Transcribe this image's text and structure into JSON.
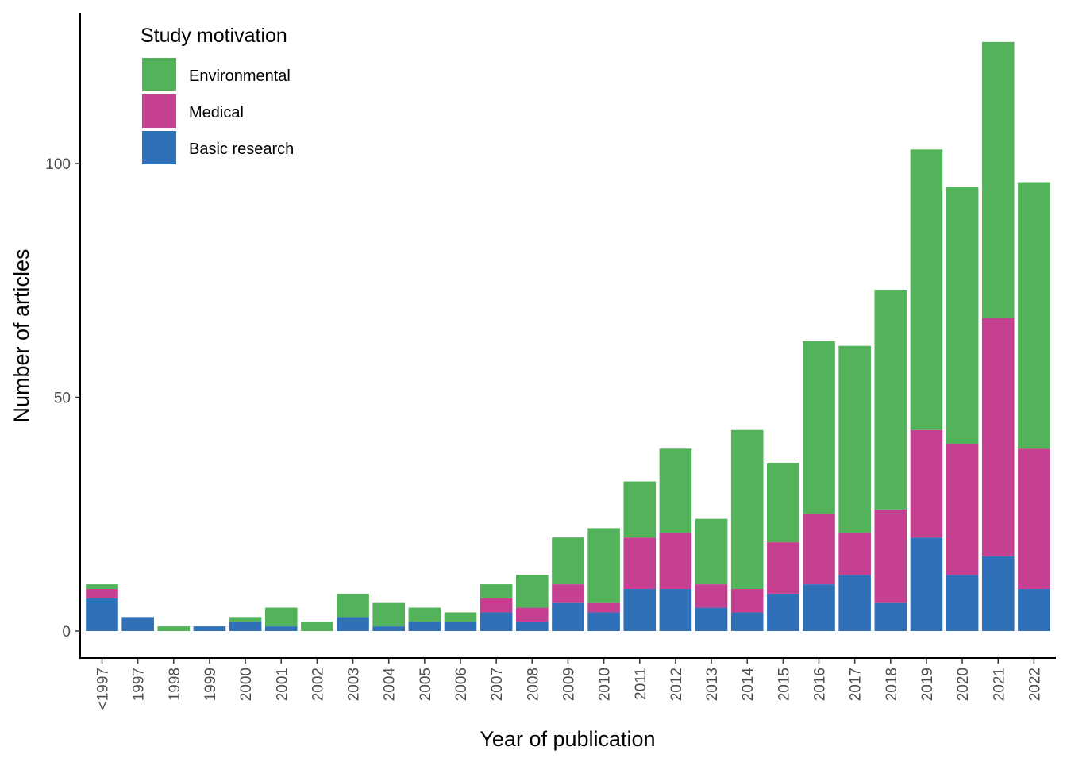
{
  "chart_data": {
    "type": "bar",
    "stacked": true,
    "xlabel": "Year of publication",
    "ylabel": "Number of articles",
    "ylim": [
      -6,
      127
    ],
    "yticks": [
      0,
      50,
      100
    ],
    "grid": false,
    "legend": {
      "title": "Study motivation",
      "placement": "top-left"
    },
    "categories": [
      "<1997",
      "1997",
      "1998",
      "1999",
      "2000",
      "2001",
      "2002",
      "2003",
      "2004",
      "2005",
      "2006",
      "2007",
      "2008",
      "2009",
      "2010",
      "2011",
      "2012",
      "2013",
      "2014",
      "2015",
      "2016",
      "2017",
      "2018",
      "2019",
      "2020",
      "2021",
      "2022"
    ],
    "series": [
      {
        "name": "Basic research",
        "color": "#3070b8",
        "values": [
          7,
          3,
          0,
          1,
          2,
          1,
          0,
          3,
          1,
          2,
          2,
          4,
          2,
          6,
          4,
          9,
          9,
          5,
          4,
          8,
          10,
          12,
          6,
          20,
          12,
          16,
          9
        ]
      },
      {
        "name": "Medical",
        "color": "#c64091",
        "values": [
          2,
          0,
          0,
          0,
          0,
          0,
          0,
          0,
          0,
          0,
          0,
          3,
          3,
          4,
          2,
          11,
          12,
          5,
          5,
          11,
          15,
          9,
          20,
          23,
          28,
          51,
          30
        ]
      },
      {
        "name": "Environmental",
        "color": "#52b35b",
        "values": [
          1,
          0,
          1,
          0,
          1,
          4,
          2,
          5,
          5,
          3,
          2,
          3,
          7,
          10,
          16,
          12,
          18,
          14,
          34,
          17,
          37,
          40,
          47,
          60,
          55,
          59,
          57
        ]
      }
    ],
    "legend_order": [
      "Environmental",
      "Medical",
      "Basic research"
    ]
  }
}
